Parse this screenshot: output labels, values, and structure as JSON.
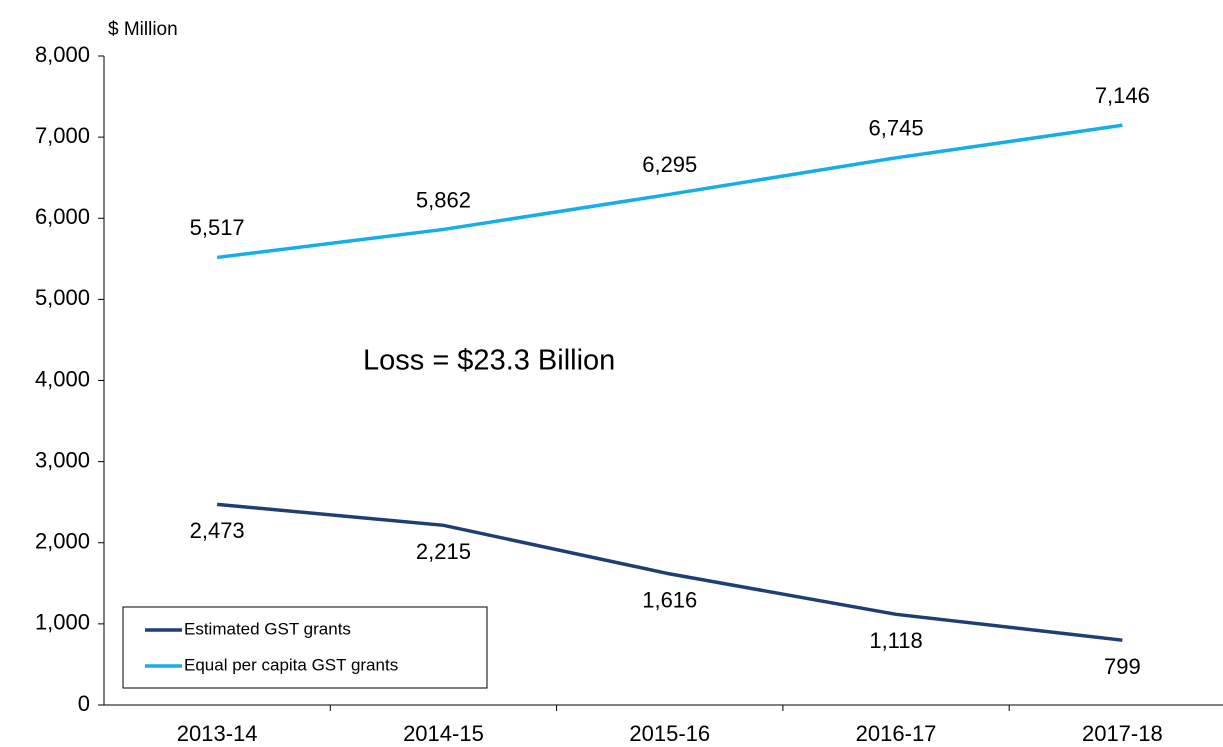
{
  "chart_data": {
    "type": "line",
    "y_axis_label": "$ Million",
    "annotation": "Loss = $23.3 Billion",
    "categories": [
      "2013-14",
      "2014-15",
      "2015-16",
      "2016-17",
      "2017-18"
    ],
    "series": [
      {
        "name": "Estimated GST grants",
        "color": "#1f3f73",
        "values": [
          2473,
          2215,
          1616,
          1118,
          799
        ],
        "value_labels": [
          "2,473",
          "2,215",
          "1,616",
          "1,118",
          "799"
        ]
      },
      {
        "name": "Equal per capita GST grants",
        "color": "#16aee6",
        "values": [
          5517,
          5862,
          6295,
          6745,
          7146
        ],
        "value_labels": [
          "5,517",
          "5,862",
          "6,295",
          "6,745",
          "7,146"
        ]
      }
    ],
    "ylim": [
      0,
      8000
    ],
    "yticks": [
      {
        "value": 0,
        "label": "0"
      },
      {
        "value": 1000,
        "label": "1,000"
      },
      {
        "value": 2000,
        "label": "2,000"
      },
      {
        "value": 3000,
        "label": "3,000"
      },
      {
        "value": 4000,
        "label": "4,000"
      },
      {
        "value": 5000,
        "label": "5,000"
      },
      {
        "value": 6000,
        "label": "6,000"
      },
      {
        "value": 7000,
        "label": "7,000"
      },
      {
        "value": 8000,
        "label": "8,000"
      }
    ],
    "grid": false,
    "legend": "lower left"
  }
}
